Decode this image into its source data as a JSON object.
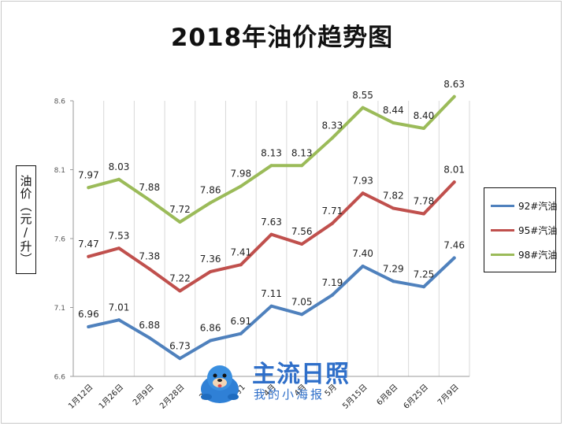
{
  "chart_data": {
    "type": "line",
    "title": "2018年油价趋势图",
    "ylabel": "油价（元/升）",
    "xlabel": "",
    "ylim": [
      6.6,
      8.6
    ],
    "yticks": [
      6.6,
      7.1,
      7.6,
      8.1,
      8.6
    ],
    "ytick_labels": [
      "6.6",
      "7.1",
      "7.6",
      "8.1",
      "8.6"
    ],
    "categories": [
      "1月12日",
      "1月26日",
      "2月9日",
      "2月28日",
      "3月2",
      "4月1",
      "4月",
      "4月",
      "5月",
      "5月15日",
      "6月8日",
      "6月25日",
      "7月9日"
    ],
    "grid": "vertical",
    "legend_position": "right",
    "series": [
      {
        "name": "92#汽油",
        "color": "#4f81bd",
        "values": [
          6.96,
          7.01,
          6.88,
          6.73,
          6.86,
          6.91,
          7.11,
          7.05,
          7.19,
          7.4,
          7.29,
          7.25,
          7.46
        ],
        "labels": [
          "6.96",
          "7.01",
          "6.88",
          "6.73",
          "6.86",
          "6.91",
          "7.11",
          "7.05",
          "7.19",
          "7.40",
          "7.29",
          "7.25",
          "7.46"
        ]
      },
      {
        "name": "95#汽油",
        "color": "#c0504d",
        "values": [
          7.47,
          7.53,
          7.38,
          7.22,
          7.36,
          7.41,
          7.63,
          7.56,
          7.71,
          7.93,
          7.82,
          7.78,
          8.01
        ],
        "labels": [
          "7.47",
          "7.53",
          "7.38",
          "7.22",
          "7.36",
          "7.41",
          "7.63",
          "7.56",
          "7.71",
          "7.93",
          "7.82",
          "7.78",
          "8.01"
        ]
      },
      {
        "name": "98#汽油",
        "color": "#9bbb59",
        "values": [
          7.97,
          8.03,
          7.88,
          7.72,
          7.86,
          7.98,
          8.13,
          8.13,
          8.33,
          8.55,
          8.44,
          8.4,
          8.63
        ],
        "labels": [
          "7.97",
          "8.03",
          "7.88",
          "7.72",
          "7.86",
          "7.98",
          "8.13",
          "8.13",
          "8.33",
          "8.55",
          "8.44",
          "8.40",
          "8.63"
        ]
      }
    ]
  },
  "watermark": {
    "brand": "主流日照",
    "subtitle": "我的小海报",
    "icon": "seal-mascot-icon"
  }
}
